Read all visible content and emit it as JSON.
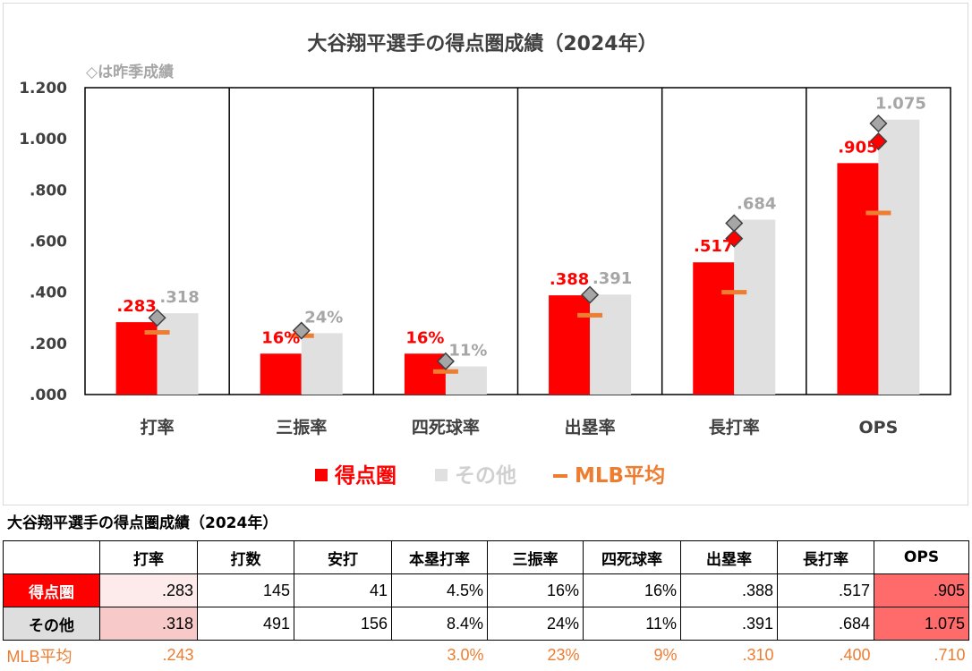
{
  "chart_data": {
    "type": "bar",
    "title": "大谷翔平選手の得点圏成績（2024年）",
    "subtitle": "◇は昨季成績",
    "categories": [
      "打率",
      "三振率",
      "四死球率",
      "出塁率",
      "長打率",
      "OPS"
    ],
    "ylim": [
      0,
      1.2
    ],
    "yticks": [
      ".000",
      ".200",
      ".400",
      ".600",
      ".800",
      "1.000",
      "1.200"
    ],
    "grid": false,
    "legend_position": "bottom",
    "series": [
      {
        "name": "得点圏",
        "color": "#ff0000",
        "values": [
          0.283,
          0.16,
          0.16,
          0.388,
          0.517,
          0.905
        ],
        "labels": [
          ".283",
          "16%",
          "16%",
          ".388",
          ".517",
          ".905"
        ]
      },
      {
        "name": "その他",
        "color": "#e0e0e0",
        "values": [
          0.318,
          0.24,
          0.11,
          0.391,
          0.684,
          1.075
        ],
        "labels": [
          ".318",
          "24%",
          "11%",
          ".391",
          ".684",
          "1.075"
        ]
      }
    ],
    "mlb_average": {
      "name": "MLB平均",
      "color": "#ed7d31",
      "values": [
        0.243,
        0.23,
        0.09,
        0.31,
        0.4,
        0.71
      ]
    },
    "last_season_markers": {
      "risp": [
        0.31,
        0.26,
        0.12,
        0.39,
        0.61,
        0.99
      ],
      "other": [
        0.3,
        0.25,
        0.13,
        0.39,
        0.67,
        1.06
      ]
    }
  },
  "table": {
    "title": "大谷翔平選手の得点圏成績（2024年）",
    "headers": [
      "",
      "打率",
      "打数",
      "安打",
      "本塁打率",
      "三振率",
      "四死球率",
      "出塁率",
      "長打率",
      "OPS"
    ],
    "rows": [
      {
        "label": "得点圏",
        "cells": [
          ".283",
          "145",
          "41",
          "4.5%",
          "16%",
          "16%",
          ".388",
          ".517",
          ".905"
        ]
      },
      {
        "label": "その他",
        "cells": [
          ".318",
          "491",
          "156",
          "8.4%",
          "24%",
          "11%",
          ".391",
          ".684",
          "1.075"
        ]
      }
    ],
    "mlb": {
      "label": "MLB平均",
      "cells": [
        ".243",
        "",
        "",
        "3.0%",
        "23%",
        "9%",
        ".310",
        ".400",
        ".710"
      ]
    }
  },
  "colors": {
    "risp": "#ff0000",
    "other": "#e0e0e0",
    "mlb": "#ed7d31",
    "ops_cell": "#ff6b6b",
    "avg_risp_cell": "#fdeaea",
    "avg_other_cell": "#f8c9c9",
    "risp_label_bg": "#ff0000",
    "other_label_bg": "#dedede"
  }
}
